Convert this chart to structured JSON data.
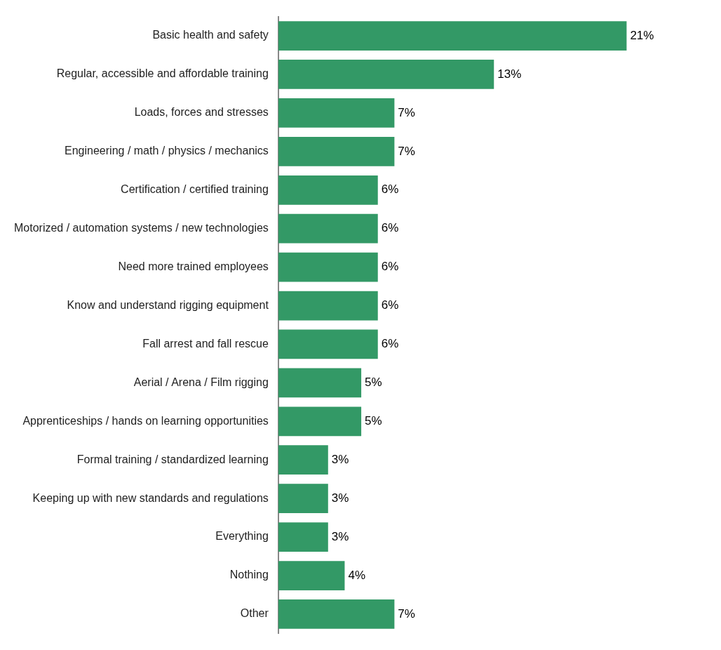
{
  "chart_data": {
    "type": "bar",
    "orientation": "horizontal",
    "categories": [
      "Basic health and safety",
      "Regular, accessible and affordable training",
      "Loads, forces and stresses",
      "Engineering / math / physics / mechanics",
      "Certification / certified training",
      "Motorized / automation systems / new technologies",
      "Need more trained employees",
      "Know and understand rigging equipment",
      "Fall arrest and fall rescue",
      "Aerial / Arena / Film rigging",
      "Apprenticeships / hands on learning opportunities",
      "Formal training / standardized learning",
      "Keeping up with new standards and regulations",
      "Everything",
      "Nothing",
      "Other"
    ],
    "values": [
      21,
      13,
      7,
      7,
      6,
      6,
      6,
      6,
      6,
      5,
      5,
      3,
      3,
      3,
      4,
      7
    ],
    "value_labels": [
      "21%",
      "13%",
      "7%",
      "7%",
      "6%",
      "6%",
      "6%",
      "6%",
      "6%",
      "5%",
      "5%",
      "3%",
      "3%",
      "3%",
      "4%",
      "7%"
    ],
    "color": "#339966",
    "legend": false
  }
}
